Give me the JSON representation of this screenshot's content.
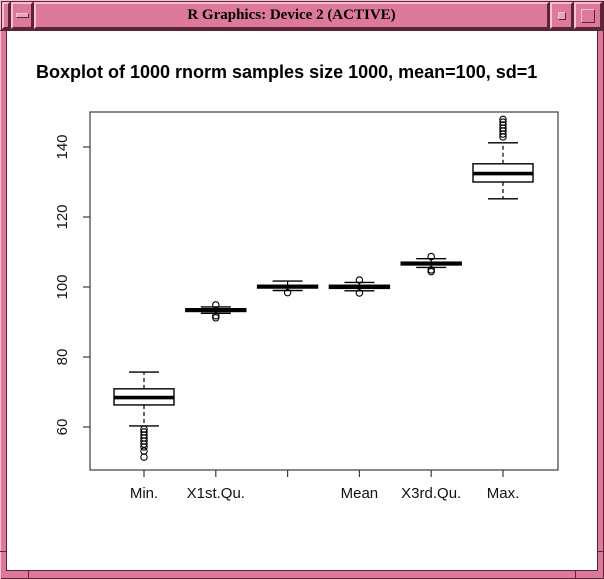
{
  "window": {
    "title": "R Graphics: Device 2 (ACTIVE)",
    "chrome_colors": {
      "titlebar_pink": "#dd7a99",
      "bevel_light": "#f6c2d3",
      "bevel_dark": "#5c2438",
      "content_bg": "#ffffff"
    }
  },
  "chart_data": {
    "type": "boxplot",
    "title": "Boxplot of 1000 rnorm samples size 1000, mean=100, sd=1",
    "categories": [
      "Min.",
      "X1st.Qu.",
      "",
      "Mean",
      "X3rd.Qu.",
      "Max."
    ],
    "y_ticks": [
      60,
      80,
      100,
      120,
      140
    ],
    "ylim": [
      48,
      150
    ],
    "grid": "off",
    "legend": "none",
    "series": [
      {
        "label": "Min.",
        "lower_whisker": 60.3,
        "q1": 66.3,
        "median": 68.4,
        "q3": 70.9,
        "upper_whisker": 75.7,
        "outliers": [
          59.4,
          58.6,
          57.7,
          56.9,
          56.0,
          55.1,
          54.3,
          53.1,
          51.4
        ]
      },
      {
        "label": "X1st.Qu.",
        "lower_whisker": 92.5,
        "q1": 93.0,
        "median": 93.4,
        "q3": 93.8,
        "upper_whisker": 94.3,
        "outliers": [
          94.9,
          91.8,
          91.2
        ]
      },
      {
        "label": "",
        "lower_whisker": 99.0,
        "q1": 99.7,
        "median": 100.1,
        "q3": 100.5,
        "upper_whisker": 101.7,
        "outliers": [
          98.4
        ]
      },
      {
        "label": "Mean",
        "lower_whisker": 98.9,
        "q1": 99.6,
        "median": 100.1,
        "q3": 100.5,
        "upper_whisker": 101.3,
        "outliers": [
          102.0,
          98.3
        ]
      },
      {
        "label": "X3rd.Qu.",
        "lower_whisker": 105.6,
        "q1": 106.3,
        "median": 106.7,
        "q3": 107.1,
        "upper_whisker": 108.1,
        "outliers": [
          108.7,
          104.9,
          104.4
        ]
      },
      {
        "label": "Max.",
        "lower_whisker": 125.2,
        "q1": 130.0,
        "median": 132.4,
        "q3": 135.2,
        "upper_whisker": 141.2,
        "outliers": [
          147.9,
          147.1,
          146.3,
          145.4,
          144.6,
          143.7,
          142.9
        ]
      }
    ]
  }
}
